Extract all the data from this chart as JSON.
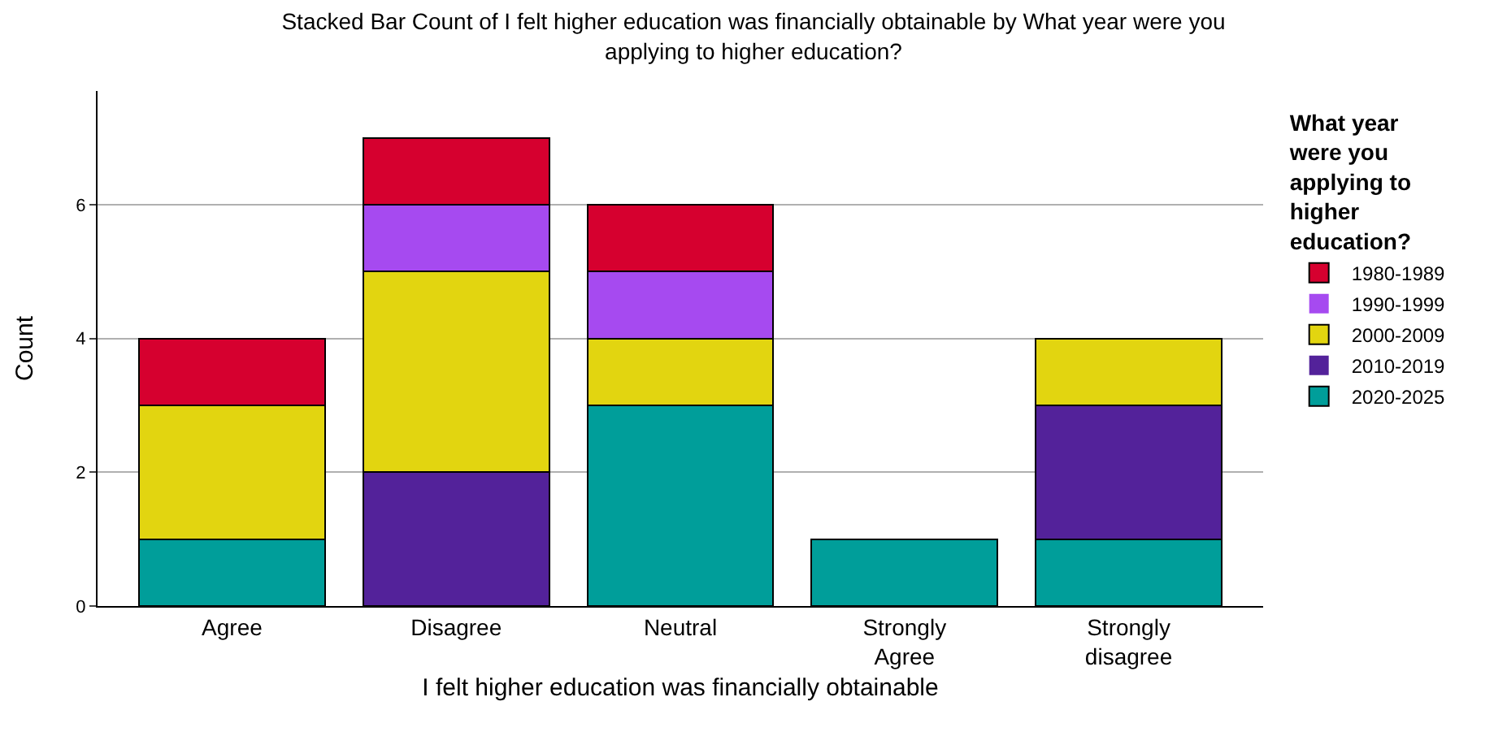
{
  "chart_data": {
    "type": "bar",
    "stacked": true,
    "title": "Stacked Bar Count of I felt higher education was financially obtainable by What year were you applying to higher education?",
    "xlabel": "I felt higher education was financially obtainable",
    "ylabel": "Count",
    "legend_title": "What year were you applying to higher education?",
    "categories": [
      "Agree",
      "Disagree",
      "Neutral",
      "Strongly Agree",
      "Strongly disagree"
    ],
    "series": [
      {
        "name": "2020-2025",
        "color": "#009e9a",
        "values": [
          1,
          0,
          3,
          1,
          1
        ]
      },
      {
        "name": "2010-2019",
        "color": "#53229a",
        "values": [
          0,
          2,
          0,
          0,
          2
        ]
      },
      {
        "name": "2000-2009",
        "color": "#e2d510",
        "values": [
          2,
          3,
          1,
          0,
          1
        ]
      },
      {
        "name": "1990-1999",
        "color": "#a64af0",
        "values": [
          0,
          1,
          1,
          0,
          0
        ]
      },
      {
        "name": "1980-1989",
        "color": "#d6002f",
        "values": [
          1,
          1,
          1,
          0,
          0
        ]
      }
    ],
    "ylim": [
      0,
      7.7
    ],
    "yticks": [
      0,
      2,
      4,
      6
    ],
    "grid": "y",
    "legend": "right"
  }
}
